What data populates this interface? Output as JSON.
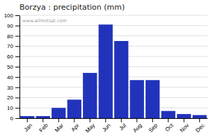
{
  "chart_data": {
    "type": "bar",
    "title": "Borzya : precipitation (mm)",
    "categories": [
      "Jan",
      "Feb",
      "Mar",
      "Apr",
      "May",
      "Jun",
      "Jul",
      "Aug",
      "Sep",
      "Oct",
      "Nov",
      "Dec"
    ],
    "values": [
      2,
      2,
      10,
      18,
      44,
      91,
      75,
      37,
      37,
      7,
      4,
      3
    ],
    "color": "#2233bb",
    "ylim": [
      0,
      100
    ],
    "yticks": [
      0,
      10,
      20,
      30,
      40,
      50,
      60,
      70,
      80,
      90,
      100
    ],
    "grid": true,
    "annotations": [
      "www.allmetsat.com"
    ]
  }
}
